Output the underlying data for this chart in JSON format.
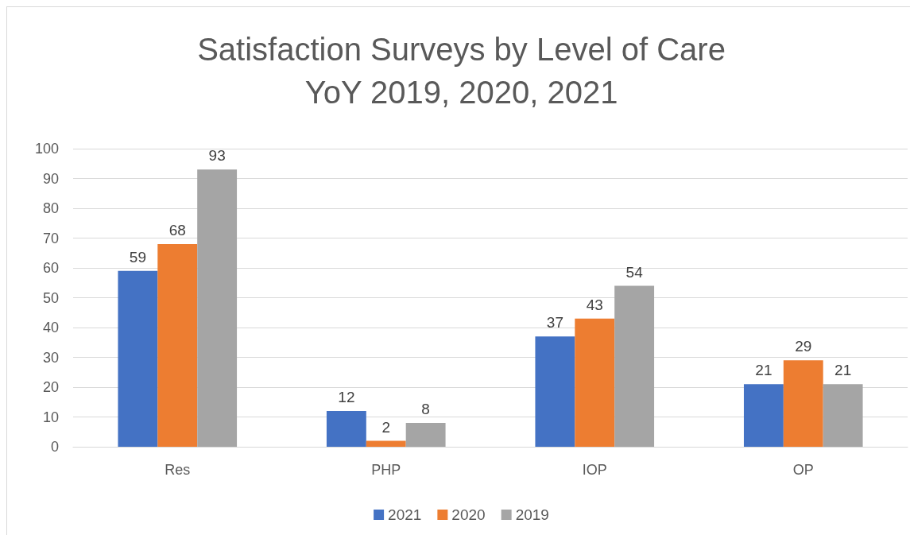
{
  "chart_data": {
    "type": "bar",
    "title": "Satisfaction Surveys by Level of Care",
    "subtitle": "YoY 2019, 2020, 2021",
    "categories": [
      "Res",
      "PHP",
      "IOP",
      "OP"
    ],
    "series": [
      {
        "name": "2021",
        "color": "#4472c4",
        "values": [
          59,
          12,
          37,
          21
        ]
      },
      {
        "name": "2020",
        "color": "#ed7d31",
        "values": [
          68,
          2,
          43,
          29
        ]
      },
      {
        "name": "2019",
        "color": "#a5a5a5",
        "values": [
          93,
          8,
          54,
          21
        ]
      }
    ],
    "ylim": [
      0,
      100
    ],
    "yticks": [
      0,
      10,
      20,
      30,
      40,
      50,
      60,
      70,
      80,
      90,
      100
    ],
    "grid": "y",
    "legend": "bottom",
    "data_labels": true
  }
}
